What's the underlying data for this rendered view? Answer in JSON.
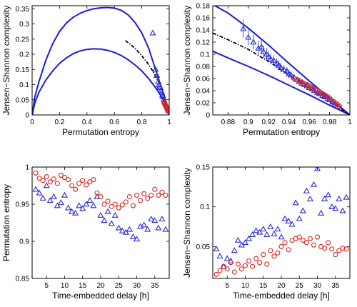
{
  "colors": {
    "bound": "#1a1adc",
    "series_a": "#2b2bd6",
    "series_b": "#e0241b",
    "curve": "#000000"
  },
  "chart_data": [
    {
      "type": "line",
      "xlabel": "Permutation entropy",
      "ylabel": "Jensen−Shannon complexity",
      "xlim": [
        0,
        1
      ],
      "ylim": [
        0,
        0.36
      ],
      "xticks": [
        "0",
        "0.2",
        "0.4",
        "0.6",
        "0.8",
        "1"
      ],
      "yticks": [
        "0",
        "0.05",
        "0.1",
        "0.15",
        "0.2",
        "0.25",
        "0.3",
        "0.35"
      ],
      "grid": false,
      "bounds": {
        "upper": {
          "x": [
            0,
            0.02,
            0.05,
            0.1,
            0.15,
            0.2,
            0.25,
            0.3,
            0.35,
            0.4,
            0.45,
            0.5,
            0.55,
            0.6,
            0.65,
            0.7,
            0.75,
            0.8,
            0.85,
            0.9,
            0.94,
            0.97,
            0.99,
            1.0
          ],
          "y": [
            0,
            0.06,
            0.11,
            0.18,
            0.235,
            0.275,
            0.303,
            0.322,
            0.335,
            0.344,
            0.35,
            0.353,
            0.354,
            0.352,
            0.345,
            0.33,
            0.305,
            0.27,
            0.22,
            0.15,
            0.095,
            0.05,
            0.02,
            0
          ]
        },
        "lower": {
          "x": [
            0,
            0.02,
            0.05,
            0.1,
            0.15,
            0.2,
            0.25,
            0.3,
            0.35,
            0.4,
            0.45,
            0.5,
            0.55,
            0.6,
            0.65,
            0.7,
            0.75,
            0.8,
            0.85,
            0.9,
            0.94,
            0.97,
            0.99,
            1.0
          ],
          "y": [
            0,
            0.04,
            0.075,
            0.115,
            0.145,
            0.17,
            0.188,
            0.202,
            0.211,
            0.216,
            0.218,
            0.217,
            0.213,
            0.206,
            0.196,
            0.182,
            0.165,
            0.145,
            0.12,
            0.09,
            0.063,
            0.04,
            0.018,
            0
          ]
        }
      },
      "dashed_curve": {
        "x": [
          0.68,
          0.72,
          0.76,
          0.8,
          0.84,
          0.88,
          0.91,
          0.94,
          0.96,
          0.98
        ],
        "y": [
          0.245,
          0.232,
          0.215,
          0.195,
          0.172,
          0.145,
          0.12,
          0.095,
          0.07,
          0.04
        ]
      },
      "series": [
        {
          "marker": "triangle",
          "x": [
            0.88,
            0.9,
            0.91,
            0.92,
            0.925,
            0.93,
            0.935,
            0.94,
            0.945,
            0.95,
            0.955,
            0.96,
            0.965,
            0.97,
            0.975,
            0.98
          ],
          "y": [
            0.27,
            0.15,
            0.13,
            0.11,
            0.1,
            0.095,
            0.09,
            0.08,
            0.075,
            0.065,
            0.06,
            0.05,
            0.045,
            0.04,
            0.035,
            0.03
          ]
        },
        {
          "marker": "circle",
          "x": [
            0.96,
            0.965,
            0.97,
            0.972,
            0.975,
            0.978,
            0.98,
            0.982,
            0.984,
            0.986,
            0.988,
            0.99
          ],
          "y": [
            0.045,
            0.04,
            0.035,
            0.032,
            0.03,
            0.028,
            0.025,
            0.022,
            0.02,
            0.018,
            0.015,
            0.012
          ]
        }
      ]
    },
    {
      "type": "line",
      "xlabel": "Permutation entropy",
      "ylabel": "Jensen−Shannon complexity",
      "xlim": [
        0.865,
        1
      ],
      "ylim": [
        0,
        0.18
      ],
      "xticks": [
        "0.88",
        "0.9",
        "0.92",
        "0.94",
        "0.96",
        "0.98",
        "1"
      ],
      "yticks": [
        "0",
        "0.02",
        "0.04",
        "0.06",
        "0.08",
        "0.1",
        "0.12",
        "0.14",
        "0.16",
        "0.18"
      ],
      "grid": false,
      "bounds": {
        "upper": {
          "x": [
            0.865,
            0.88,
            0.9,
            0.92,
            0.94,
            0.96,
            0.98,
            1.0
          ],
          "y": [
            0.182,
            0.168,
            0.143,
            0.115,
            0.085,
            0.056,
            0.028,
            0
          ]
        },
        "lower": {
          "x": [
            0.865,
            0.88,
            0.9,
            0.92,
            0.94,
            0.96,
            0.98,
            1.0
          ],
          "y": [
            0.105,
            0.094,
            0.08,
            0.065,
            0.049,
            0.033,
            0.016,
            0
          ]
        }
      },
      "dashed_curve": {
        "x": [
          0.865,
          0.88,
          0.9,
          0.92,
          0.94,
          0.96,
          0.98,
          1.0
        ],
        "y": [
          0.135,
          0.124,
          0.108,
          0.088,
          0.066,
          0.044,
          0.022,
          0
        ]
      },
      "series": [
        {
          "marker": "triangle",
          "x": [
            0.895,
            0.9,
            0.905,
            0.91,
            0.913,
            0.915,
            0.918,
            0.92,
            0.922,
            0.925,
            0.928,
            0.93,
            0.932,
            0.935,
            0.938,
            0.94,
            0.942,
            0.945,
            0.948,
            0.95,
            0.953,
            0.955,
            0.958,
            0.96,
            0.963,
            0.965,
            0.968,
            0.97,
            0.973,
            0.975,
            0.978,
            0.98,
            0.983,
            0.985,
            0.988
          ],
          "y": [
            0.142,
            0.128,
            0.12,
            0.11,
            0.112,
            0.104,
            0.1,
            0.096,
            0.092,
            0.09,
            0.085,
            0.082,
            0.078,
            0.075,
            0.072,
            0.068,
            0.066,
            0.062,
            0.058,
            0.055,
            0.052,
            0.05,
            0.048,
            0.045,
            0.043,
            0.04,
            0.037,
            0.035,
            0.032,
            0.03,
            0.027,
            0.025,
            0.021,
            0.018,
            0.014
          ],
          "err": [
            0.015,
            0.013,
            0.012,
            0.012,
            0.011,
            0.01,
            0.01,
            0.009,
            0.009,
            0.009,
            0.008,
            0.008,
            0.008,
            0.007,
            0.007,
            0.007,
            0.006,
            0.006,
            0.006,
            0.006,
            0.005,
            0.005,
            0.005,
            0.005,
            0.004,
            0.004,
            0.004,
            0.004,
            0.004,
            0.003,
            0.003,
            0.003,
            0.003,
            0.003,
            0.002
          ]
        },
        {
          "marker": "circle",
          "x": [
            0.945,
            0.95,
            0.953,
            0.955,
            0.958,
            0.96,
            0.962,
            0.964,
            0.966,
            0.968,
            0.97,
            0.972,
            0.974,
            0.976,
            0.978,
            0.98,
            0.982,
            0.984,
            0.986,
            0.988,
            0.99
          ],
          "y": [
            0.06,
            0.057,
            0.054,
            0.052,
            0.05,
            0.048,
            0.046,
            0.044,
            0.042,
            0.04,
            0.038,
            0.036,
            0.034,
            0.032,
            0.03,
            0.028,
            0.025,
            0.022,
            0.02,
            0.017,
            0.014
          ],
          "err": [
            0.005,
            0.005,
            0.005,
            0.004,
            0.004,
            0.004,
            0.004,
            0.004,
            0.004,
            0.003,
            0.003,
            0.003,
            0.003,
            0.003,
            0.003,
            0.003,
            0.002,
            0.002,
            0.002,
            0.002,
            0.002
          ]
        }
      ]
    },
    {
      "type": "scatter",
      "xlabel": "Time-embedded delay [h]",
      "ylabel": "Permutation entropy",
      "xlim": [
        1,
        39
      ],
      "ylim": [
        0.85,
        1
      ],
      "xticks": [
        "5",
        "10",
        "15",
        "20",
        "25",
        "30",
        "35"
      ],
      "yticks": [
        "0.85",
        "0.9",
        "0.95",
        "1"
      ],
      "grid": false,
      "series": [
        {
          "marker": "triangle",
          "x": [
            2,
            3,
            4,
            5,
            6,
            7,
            8,
            9,
            10,
            11,
            12,
            13,
            14,
            15,
            16,
            17,
            18,
            19,
            20,
            21,
            22,
            23,
            24,
            25,
            26,
            27,
            28,
            29,
            30,
            31,
            32,
            33,
            34,
            35,
            36,
            37,
            38
          ],
          "y": [
            0.97,
            0.965,
            0.958,
            0.975,
            0.955,
            0.96,
            0.948,
            0.952,
            0.962,
            0.945,
            0.94,
            0.938,
            0.948,
            0.944,
            0.95,
            0.955,
            0.948,
            0.96,
            0.935,
            0.928,
            0.94,
            0.924,
            0.935,
            0.918,
            0.914,
            0.912,
            0.916,
            0.906,
            0.903,
            0.92,
            0.922,
            0.916,
            0.93,
            0.928,
            0.918,
            0.93,
            0.916
          ]
        },
        {
          "marker": "circle",
          "x": [
            2,
            3,
            4,
            5,
            6,
            7,
            8,
            9,
            10,
            11,
            12,
            13,
            14,
            15,
            16,
            17,
            18,
            19,
            20,
            21,
            22,
            23,
            24,
            25,
            26,
            27,
            28,
            29,
            30,
            31,
            32,
            33,
            34,
            35,
            36,
            37,
            38
          ],
          "y": [
            0.992,
            0.985,
            0.982,
            0.987,
            0.98,
            0.984,
            0.978,
            0.989,
            0.986,
            0.983,
            0.975,
            0.97,
            0.978,
            0.982,
            0.976,
            0.98,
            0.983,
            0.965,
            0.96,
            0.95,
            0.954,
            0.947,
            0.95,
            0.945,
            0.949,
            0.953,
            0.96,
            0.948,
            0.962,
            0.955,
            0.964,
            0.958,
            0.962,
            0.97,
            0.962,
            0.966,
            0.962
          ]
        }
      ]
    },
    {
      "type": "scatter",
      "xlabel": "Time-embedded delay [h]",
      "ylabel": "Jensen−Shannon complexity",
      "xlim": [
        1,
        39
      ],
      "ylim": [
        0.01,
        0.15
      ],
      "xticks": [
        "5",
        "10",
        "15",
        "20",
        "25",
        "30",
        "35"
      ],
      "yticks": [
        "0.05",
        "0.1",
        "0.15"
      ],
      "grid": false,
      "series": [
        {
          "marker": "triangle",
          "x": [
            2,
            3,
            4,
            5,
            6,
            7,
            8,
            9,
            10,
            11,
            12,
            13,
            14,
            15,
            16,
            17,
            18,
            19,
            20,
            21,
            22,
            23,
            24,
            25,
            26,
            27,
            28,
            29,
            30,
            31,
            32,
            33,
            34,
            35,
            36,
            37,
            38
          ],
          "y": [
            0.047,
            0.038,
            0.025,
            0.035,
            0.032,
            0.045,
            0.058,
            0.052,
            0.055,
            0.06,
            0.065,
            0.07,
            0.068,
            0.072,
            0.065,
            0.075,
            0.066,
            0.072,
            0.062,
            0.085,
            0.082,
            0.078,
            0.105,
            0.085,
            0.095,
            0.12,
            0.11,
            0.128,
            0.148,
            0.092,
            0.11,
            0.115,
            0.1,
            0.098,
            0.11,
            0.095,
            0.112
          ]
        },
        {
          "marker": "circle",
          "x": [
            2,
            3,
            4,
            5,
            6,
            7,
            8,
            9,
            10,
            11,
            12,
            13,
            14,
            15,
            16,
            17,
            18,
            19,
            20,
            21,
            22,
            23,
            24,
            25,
            26,
            27,
            28,
            29,
            30,
            31,
            32,
            33,
            34,
            35,
            36,
            37,
            38
          ],
          "y": [
            0.015,
            0.02,
            0.025,
            0.022,
            0.03,
            0.018,
            0.028,
            0.022,
            0.026,
            0.032,
            0.025,
            0.035,
            0.03,
            0.04,
            0.028,
            0.045,
            0.038,
            0.042,
            0.05,
            0.055,
            0.046,
            0.058,
            0.06,
            0.062,
            0.058,
            0.055,
            0.06,
            0.052,
            0.062,
            0.05,
            0.048,
            0.055,
            0.047,
            0.04,
            0.045,
            0.048,
            0.047
          ]
        }
      ]
    }
  ]
}
